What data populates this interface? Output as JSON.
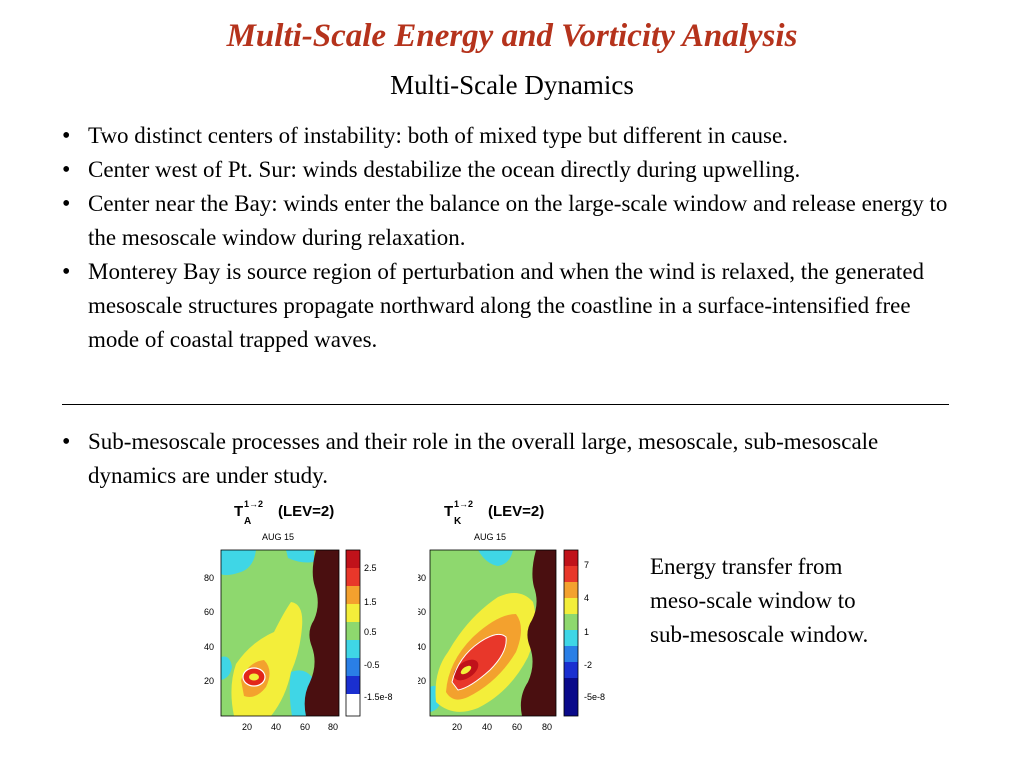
{
  "title": "Multi-Scale Energy and Vorticity Analysis",
  "subtitle": "Multi-Scale Dynamics",
  "bullets_main": [
    "Two distinct centers of instability: both of mixed type but different in cause.",
    "Center west of Pt. Sur: winds destabilize the ocean directly during upwelling.",
    "Center near the Bay: winds enter the balance on the large-scale window and release energy to the mesoscale window during relaxation.",
    "Monterey Bay is source region of perturbation and when the wind is relaxed, the generated mesoscale structures propagate northward along the coastline in a surface-intensified free mode of coastal trapped waves."
  ],
  "bullets_secondary": [
    "Sub-mesoscale processes and their role in the overall large, mesoscale, sub-mesoscale dynamics are under study."
  ],
  "panels": [
    {
      "symbol": "T",
      "subscript": "A",
      "superscript": "1→2",
      "level": "(LEV=2)",
      "date": "AUG 15",
      "y_ticks": [
        "80",
        "60",
        "40",
        "20"
      ],
      "x_ticks": [
        "20",
        "40",
        "60",
        "80"
      ],
      "colorbar_labels": [
        "2.5",
        "1.5",
        "0.5",
        "-0.5",
        "-1.5e-8"
      ]
    },
    {
      "symbol": "T",
      "subscript": "K",
      "superscript": "1→2",
      "level": "(LEV=2)",
      "date": "AUG 15",
      "y_ticks": [
        "80",
        "60",
        "40",
        "20"
      ],
      "x_ticks": [
        "20",
        "40",
        "60",
        "80"
      ],
      "colorbar_labels": [
        "7",
        "4",
        "1",
        "-2",
        "-5e-8"
      ]
    }
  ],
  "caption": [
    "Energy transfer from",
    "meso-scale window to",
    "sub-mesoscale window."
  ],
  "colors": {
    "title": "#b5331c",
    "land": "#4a0f10",
    "background_field": "#8ed86e",
    "cyan": "#3fd6e6",
    "yellow": "#f3ee3a",
    "orange": "#f3a12e",
    "red": "#e2261a"
  }
}
